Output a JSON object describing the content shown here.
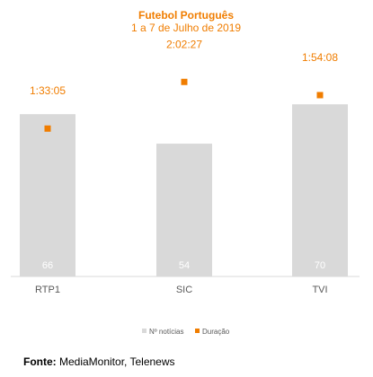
{
  "chart_data": {
    "type": "bar",
    "title": "Futebol Português",
    "subtitle": "1 a 7 de Julho de 2019",
    "categories": [
      "RTP1",
      "SIC",
      "TVI"
    ],
    "series": [
      {
        "name": "Nº notícias",
        "type": "bar",
        "values": [
          66,
          54,
          70
        ],
        "labels": [
          "66",
          "54",
          "70"
        ],
        "color": "#d9d9d9"
      },
      {
        "name": "Duração",
        "type": "scatter",
        "values_seconds": [
          5585,
          7347,
          6848
        ],
        "labels": [
          "1:33:05",
          "2:02:27",
          "1:54:08"
        ],
        "color": "#f07d00"
      }
    ],
    "legend_position": "bottom",
    "grid": false
  },
  "source": {
    "label": "Fonte:",
    "text": " MediaMonitor, Telenews"
  },
  "colors": {
    "accent": "#f07d00",
    "bar": "#d9d9d9",
    "text": "#595959"
  }
}
